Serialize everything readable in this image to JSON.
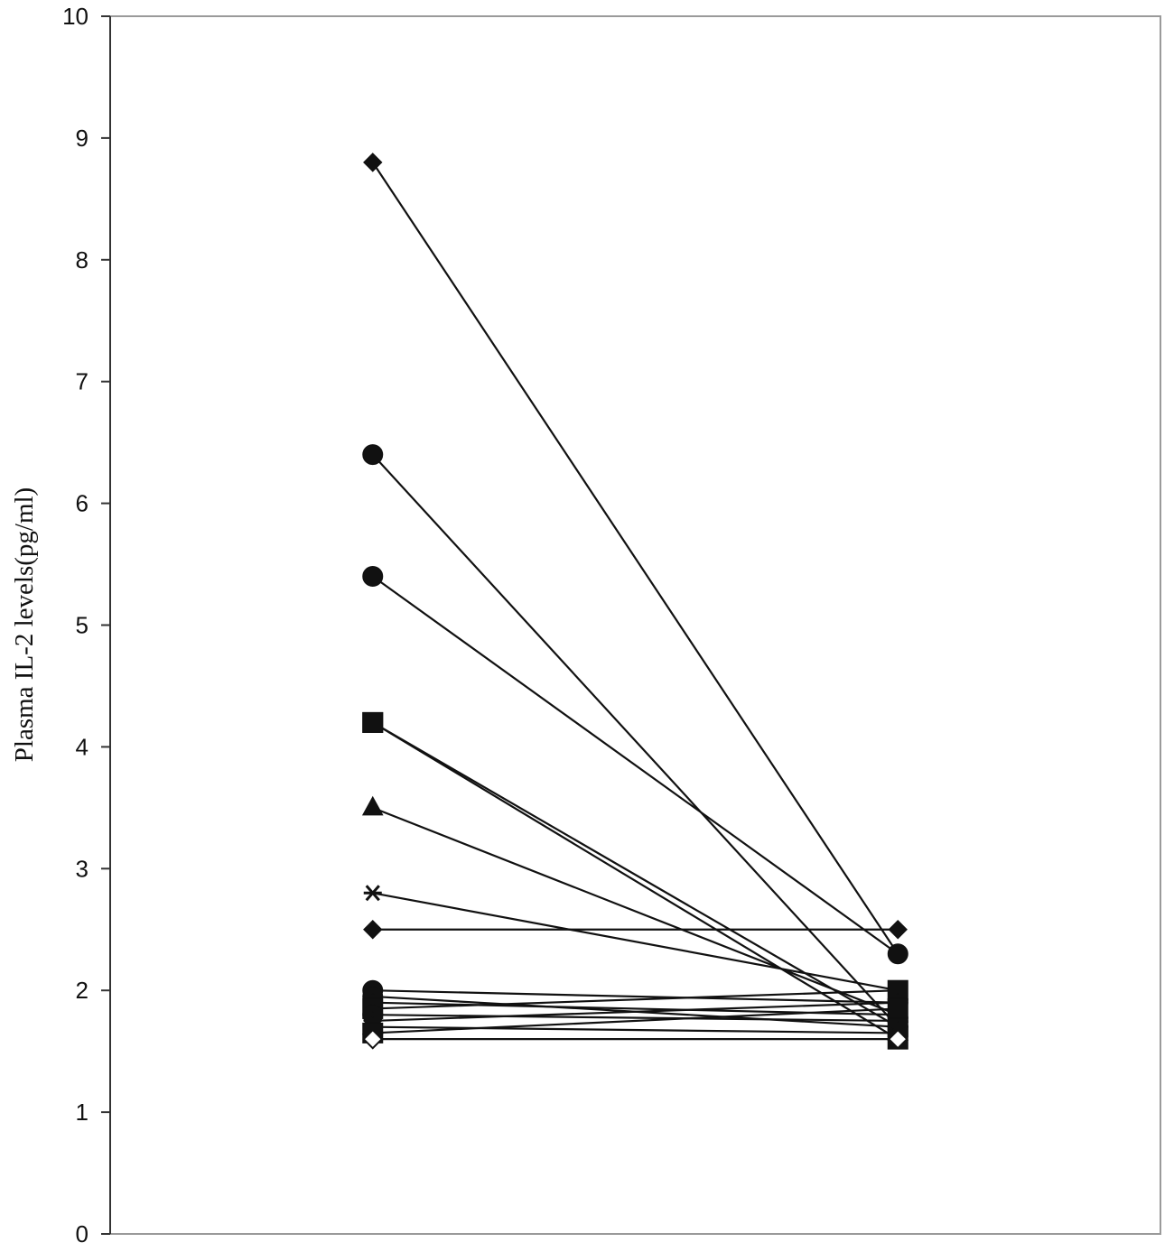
{
  "chart_data": {
    "type": "line",
    "title": "",
    "xlabel": "",
    "ylabel": "Plasma IL-2 levels(pg/ml)",
    "ylim": [
      0,
      10
    ],
    "yticks": [
      "0",
      "1",
      "2",
      "3",
      "4",
      "5",
      "6",
      "7",
      "8",
      "9",
      "10"
    ],
    "x": [
      1,
      2
    ],
    "xlim": [
      0.5,
      2.5
    ],
    "grid": false,
    "series": [
      {
        "values": [
          8.8,
          2.3
        ],
        "marker": "diamond",
        "color": "#111111"
      },
      {
        "values": [
          6.4,
          1.7
        ],
        "marker": "circle",
        "color": "#111111"
      },
      {
        "values": [
          5.4,
          2.3
        ],
        "marker": "circle",
        "color": "#111111"
      },
      {
        "values": [
          4.2,
          1.6
        ],
        "marker": "square",
        "color": "#111111"
      },
      {
        "values": [
          4.2,
          1.7
        ],
        "marker": "square",
        "color": "#111111"
      },
      {
        "values": [
          3.5,
          1.8
        ],
        "marker": "triangle",
        "color": "#111111"
      },
      {
        "values": [
          2.8,
          2.0
        ],
        "marker": "star",
        "color": "#111111"
      },
      {
        "values": [
          2.5,
          2.5
        ],
        "marker": "diamond",
        "color": "#111111"
      },
      {
        "values": [
          2.0,
          1.9
        ],
        "marker": "circle",
        "color": "#111111"
      },
      {
        "values": [
          1.95,
          1.7
        ],
        "marker": "circle",
        "color": "#111111"
      },
      {
        "values": [
          1.9,
          1.8
        ],
        "marker": "diamond",
        "color": "#111111"
      },
      {
        "values": [
          1.85,
          2.0
        ],
        "marker": "square",
        "color": "#111111"
      },
      {
        "values": [
          1.8,
          1.75
        ],
        "marker": "circle",
        "color": "#111111"
      },
      {
        "values": [
          1.75,
          1.9
        ],
        "marker": "diamond",
        "color": "#111111"
      },
      {
        "values": [
          1.7,
          1.65
        ],
        "marker": "triangle",
        "color": "#111111"
      },
      {
        "values": [
          1.65,
          1.85
        ],
        "marker": "square",
        "color": "#111111"
      },
      {
        "values": [
          1.6,
          1.6
        ],
        "marker": "open-diamond",
        "color": "#111111"
      }
    ]
  }
}
